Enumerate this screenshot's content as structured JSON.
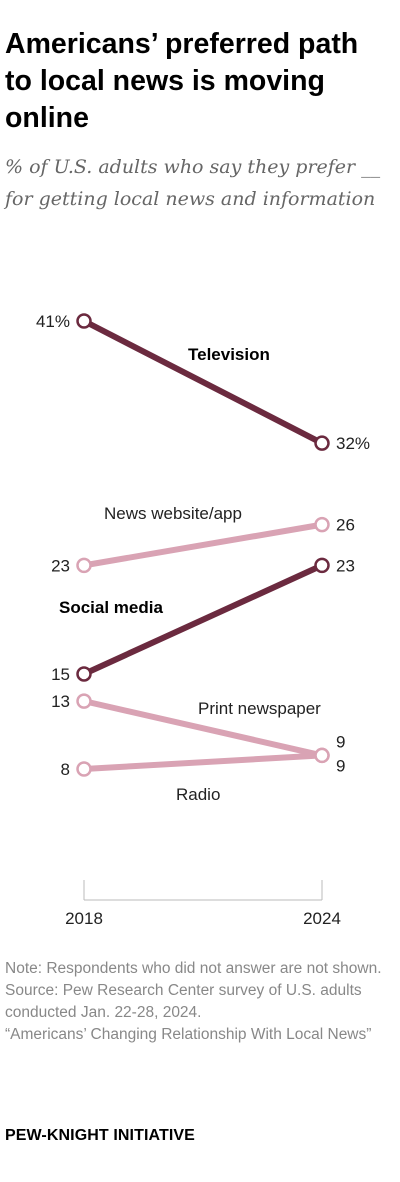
{
  "title": "Americans’ preferred path to local news is moving online",
  "subtitle": "% of U.S. adults who say they prefer __ for getting local news and information",
  "chart_data": {
    "type": "line",
    "categories": [
      "2018",
      "2024"
    ],
    "series": [
      {
        "name": "Television",
        "values": [
          41,
          32
        ],
        "labels": [
          "41%",
          "32%"
        ],
        "color": "#6b2a3f",
        "bold": true
      },
      {
        "name": "News website/app",
        "values": [
          23,
          26
        ],
        "labels": [
          "23",
          "26"
        ],
        "color": "#d9a3b4",
        "bold": false
      },
      {
        "name": "Social media",
        "values": [
          15,
          23
        ],
        "labels": [
          "15",
          "23"
        ],
        "color": "#6b2a3f",
        "bold": true
      },
      {
        "name": "Print newspaper",
        "values": [
          13,
          9
        ],
        "labels": [
          "13",
          "9"
        ],
        "color": "#d9a3b4",
        "bold": false
      },
      {
        "name": "Radio",
        "values": [
          8,
          9
        ],
        "labels": [
          "8",
          "9"
        ],
        "color": "#d9a3b4",
        "bold": false
      }
    ],
    "xlabel": "",
    "ylabel": "",
    "grid": false,
    "legend": "inline"
  },
  "notes": {
    "note": "Note: Respondents who did not answer are not shown.",
    "source": "Source: Pew Research Center survey of U.S. adults conducted Jan. 22-28, 2024.",
    "report": "“Americans’ Changing Relationship With Local News”"
  },
  "brand": "PEW-KNIGHT INITIATIVE"
}
